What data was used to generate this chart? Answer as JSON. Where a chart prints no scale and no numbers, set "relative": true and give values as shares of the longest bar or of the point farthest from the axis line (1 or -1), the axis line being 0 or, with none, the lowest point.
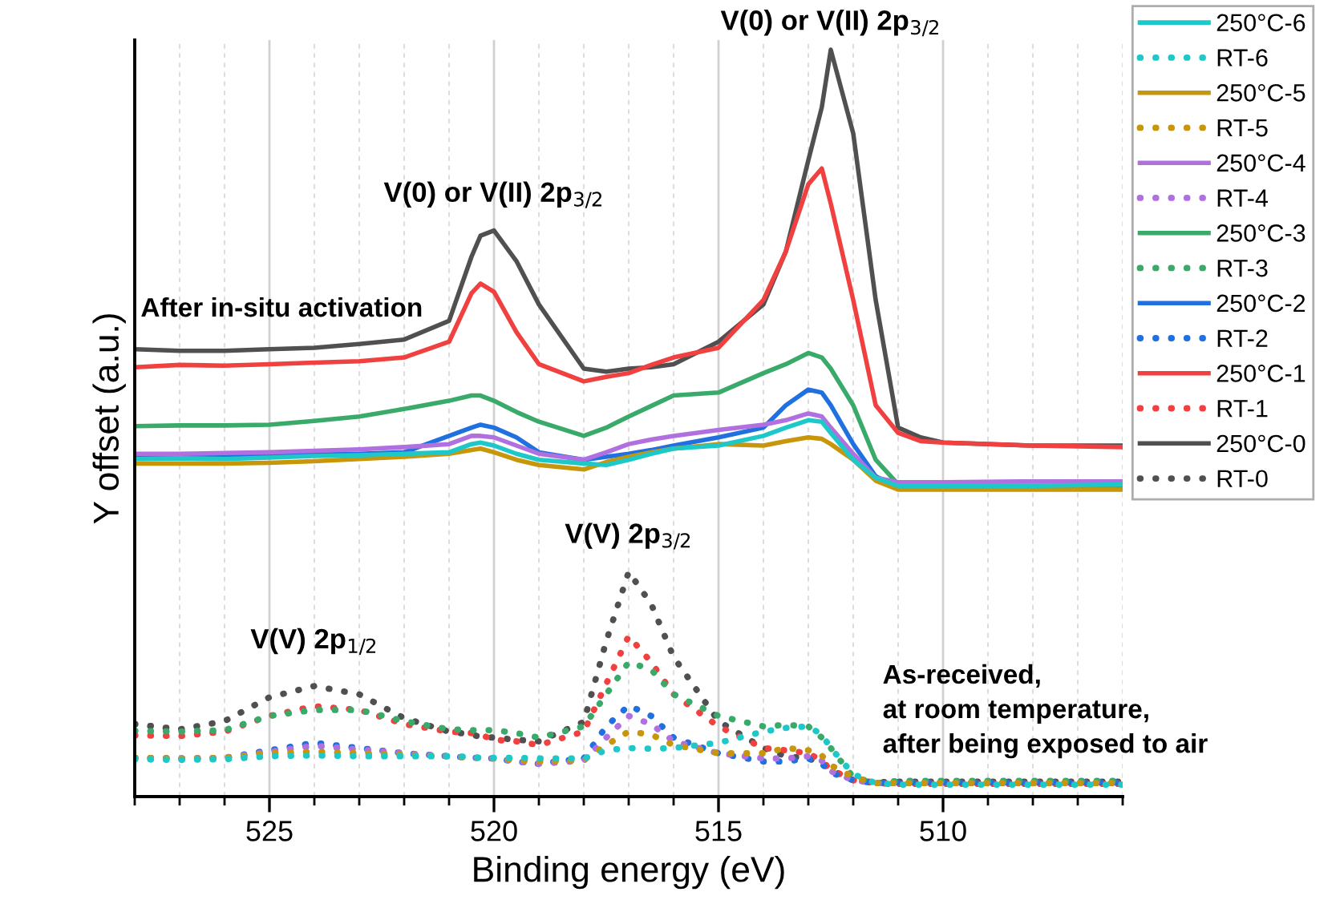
{
  "chart_data": {
    "type": "line",
    "xlabel": "Binding energy (eV)",
    "ylabel": "Y offset (a.u.)",
    "relative": true,
    "xlim": [
      528,
      506
    ],
    "xticks": [
      {
        "value": 528,
        "label": null
      },
      {
        "value": 527,
        "label": null
      },
      {
        "value": 526,
        "label": null
      },
      525,
      {
        "value": 524,
        "label": null
      },
      {
        "value": 523,
        "label": null
      },
      {
        "value": 522,
        "label": null
      },
      {
        "value": 521,
        "label": null
      },
      520,
      {
        "value": 519,
        "label": null
      },
      {
        "value": 518,
        "label": null
      },
      {
        "value": 517,
        "label": null
      },
      {
        "value": 516,
        "label": null
      },
      515,
      {
        "value": 514,
        "label": null
      },
      {
        "value": 513,
        "label": null
      },
      {
        "value": 512,
        "label": null
      },
      {
        "value": 511,
        "label": null
      },
      510,
      {
        "value": 509,
        "label": null
      },
      {
        "value": 508,
        "label": null
      },
      {
        "value": 507,
        "label": null
      },
      {
        "value": 506,
        "label": null
      }
    ],
    "grid": "x",
    "legend": "right",
    "marker": "none",
    "x": [
      528,
      527,
      526,
      525,
      524,
      523,
      522,
      521,
      520.5,
      520.3,
      520,
      519.5,
      519,
      518,
      517.5,
      517,
      516.5,
      516,
      515,
      514,
      513.5,
      513,
      512.7,
      512.5,
      512,
      511.5,
      511,
      510.5,
      510,
      508,
      506
    ],
    "series": [
      {
        "name": "250°C-6",
        "color": "#1fc8c8",
        "line_style": "solid",
        "values": [
          0.452,
          0.453,
          0.452,
          0.454,
          0.456,
          0.457,
          0.459,
          0.461,
          0.472,
          0.474,
          0.47,
          0.459,
          0.451,
          0.446,
          0.444,
          0.451,
          0.459,
          0.466,
          0.47,
          0.483,
          0.494,
          0.504,
          0.502,
          0.487,
          0.451,
          0.427,
          0.416,
          0.416,
          0.416,
          0.416,
          0.418
        ]
      },
      {
        "name": "RT-6",
        "color": "#1fc8c8",
        "line_style": "dotted",
        "values": [
          0.05,
          0.049,
          0.05,
          0.054,
          0.055,
          0.054,
          0.054,
          0.054,
          0.053,
          0.052,
          0.052,
          0.052,
          0.051,
          0.051,
          0.062,
          0.065,
          0.064,
          0.065,
          0.072,
          0.087,
          0.092,
          0.094,
          0.083,
          0.065,
          0.03,
          0.018,
          0.016,
          0.016,
          0.016,
          0.016,
          0.016
        ]
      },
      {
        "name": "250°C-5",
        "color": "#c8960a",
        "line_style": "solid",
        "values": [
          0.446,
          0.446,
          0.446,
          0.447,
          0.449,
          0.452,
          0.455,
          0.459,
          0.464,
          0.466,
          0.461,
          0.451,
          0.444,
          0.438,
          0.448,
          0.455,
          0.461,
          0.466,
          0.472,
          0.47,
          0.476,
          0.481,
          0.479,
          0.472,
          0.451,
          0.423,
          0.411,
          0.411,
          0.411,
          0.411,
          0.411
        ]
      },
      {
        "name": "RT-5",
        "color": "#c8960a",
        "line_style": "dotted",
        "values": [
          0.052,
          0.051,
          0.052,
          0.058,
          0.06,
          0.058,
          0.056,
          0.054,
          0.052,
          0.052,
          0.051,
          0.049,
          0.047,
          0.049,
          0.069,
          0.087,
          0.083,
          0.069,
          0.058,
          0.058,
          0.065,
          0.062,
          0.055,
          0.042,
          0.026,
          0.018,
          0.018,
          0.018,
          0.018,
          0.018,
          0.018
        ]
      },
      {
        "name": "250°C-4",
        "color": "#b070e0",
        "line_style": "solid",
        "values": [
          0.459,
          0.459,
          0.46,
          0.461,
          0.463,
          0.465,
          0.468,
          0.472,
          0.483,
          0.483,
          0.481,
          0.47,
          0.459,
          0.451,
          0.461,
          0.472,
          0.478,
          0.483,
          0.491,
          0.498,
          0.504,
          0.513,
          0.509,
          0.494,
          0.459,
          0.427,
          0.421,
          0.421,
          0.421,
          0.422,
          0.422
        ]
      },
      {
        "name": "RT-4",
        "color": "#b070e0",
        "line_style": "dotted",
        "values": [
          0.052,
          0.051,
          0.052,
          0.06,
          0.068,
          0.063,
          0.058,
          0.054,
          0.052,
          0.052,
          0.051,
          0.047,
          0.044,
          0.048,
          0.079,
          0.108,
          0.097,
          0.074,
          0.058,
          0.051,
          0.051,
          0.054,
          0.048,
          0.034,
          0.022,
          0.018,
          0.018,
          0.018,
          0.018,
          0.018,
          0.018
        ]
      },
      {
        "name": "250°C-3",
        "color": "#3aaa6a",
        "line_style": "solid",
        "values": [
          0.496,
          0.497,
          0.497,
          0.498,
          0.503,
          0.509,
          0.519,
          0.53,
          0.537,
          0.537,
          0.53,
          0.515,
          0.502,
          0.483,
          0.494,
          0.509,
          0.523,
          0.537,
          0.541,
          0.567,
          0.579,
          0.594,
          0.588,
          0.573,
          0.524,
          0.451,
          0.418,
          0.416,
          0.416,
          0.416,
          0.416
        ]
      },
      {
        "name": "RT-3",
        "color": "#3aaa6a",
        "line_style": "dotted",
        "values": [
          0.088,
          0.087,
          0.089,
          0.108,
          0.116,
          0.116,
          0.101,
          0.09,
          0.089,
          0.089,
          0.089,
          0.085,
          0.079,
          0.094,
          0.137,
          0.18,
          0.17,
          0.137,
          0.108,
          0.094,
          0.096,
          0.094,
          0.079,
          0.065,
          0.026,
          0.018,
          0.021,
          0.021,
          0.021,
          0.021,
          0.021
        ]
      },
      {
        "name": "250°C-2",
        "color": "#2070e0",
        "line_style": "solid",
        "values": [
          0.455,
          0.455,
          0.456,
          0.457,
          0.458,
          0.459,
          0.461,
          0.483,
          0.494,
          0.498,
          0.494,
          0.481,
          0.461,
          0.451,
          0.455,
          0.459,
          0.464,
          0.47,
          0.481,
          0.494,
          0.524,
          0.545,
          0.541,
          0.524,
          0.472,
          0.429,
          0.413,
          0.413,
          0.413,
          0.413,
          0.413
        ]
      },
      {
        "name": "RT-2",
        "color": "#2070e0",
        "line_style": "dotted",
        "values": [
          0.052,
          0.051,
          0.052,
          0.062,
          0.072,
          0.065,
          0.058,
          0.054,
          0.052,
          0.052,
          0.051,
          0.047,
          0.044,
          0.051,
          0.094,
          0.122,
          0.108,
          0.079,
          0.058,
          0.047,
          0.047,
          0.051,
          0.044,
          0.032,
          0.022,
          0.018,
          0.019,
          0.019,
          0.019,
          0.019,
          0.019
        ]
      },
      {
        "name": "250°C-1",
        "color": "#f04040",
        "line_style": "solid",
        "values": [
          0.575,
          0.578,
          0.577,
          0.579,
          0.581,
          0.583,
          0.588,
          0.609,
          0.674,
          0.687,
          0.676,
          0.622,
          0.579,
          0.556,
          0.562,
          0.567,
          0.578,
          0.588,
          0.601,
          0.665,
          0.73,
          0.82,
          0.841,
          0.794,
          0.665,
          0.524,
          0.487,
          0.476,
          0.474,
          0.47,
          0.468
        ]
      },
      {
        "name": "RT-1",
        "color": "#f04040",
        "line_style": "dotted",
        "values": [
          0.082,
          0.081,
          0.087,
          0.108,
          0.121,
          0.116,
          0.097,
          0.087,
          0.085,
          0.083,
          0.076,
          0.074,
          0.069,
          0.087,
          0.151,
          0.215,
          0.18,
          0.137,
          0.094,
          0.065,
          0.062,
          0.058,
          0.048,
          0.036,
          0.022,
          0.018,
          0.017,
          0.017,
          0.017,
          0.017,
          0.017
        ]
      },
      {
        "name": "250°C-0",
        "color": "#505050",
        "line_style": "solid",
        "values": [
          0.599,
          0.597,
          0.597,
          0.599,
          0.601,
          0.606,
          0.612,
          0.637,
          0.723,
          0.751,
          0.758,
          0.717,
          0.659,
          0.573,
          0.569,
          0.573,
          0.575,
          0.579,
          0.609,
          0.659,
          0.73,
          0.852,
          0.923,
          1.0,
          0.888,
          0.665,
          0.494,
          0.481,
          0.474,
          0.47,
          0.47
        ]
      },
      {
        "name": "RT-0",
        "color": "#505050",
        "line_style": "dotted",
        "values": [
          0.097,
          0.09,
          0.101,
          0.133,
          0.148,
          0.137,
          0.105,
          0.087,
          0.083,
          0.08,
          0.079,
          0.076,
          0.074,
          0.1,
          0.208,
          0.301,
          0.258,
          0.187,
          0.101,
          0.065,
          0.054,
          0.051,
          0.045,
          0.036,
          0.022,
          0.019,
          0.02,
          0.02,
          0.02,
          0.02,
          0.02
        ]
      }
    ],
    "annotations": [
      {
        "text": "V(0) or V(II) 2p$_{3/2}$",
        "x": 520,
        "y": 0.758
      },
      {
        "text": "V(0) or V(II) 2p$_{3/2}$",
        "x": 512.5,
        "y": 1.0
      },
      {
        "text": "V(V) 2p$_{3/2}$",
        "x": 517,
        "y": 0.301
      },
      {
        "text": "V(V) 2p$_{1/2}$",
        "x": 524,
        "y": 0.148
      },
      "After in-situ activation",
      "As-received,\nat room temperature,\nafter being exposed to air"
    ]
  }
}
